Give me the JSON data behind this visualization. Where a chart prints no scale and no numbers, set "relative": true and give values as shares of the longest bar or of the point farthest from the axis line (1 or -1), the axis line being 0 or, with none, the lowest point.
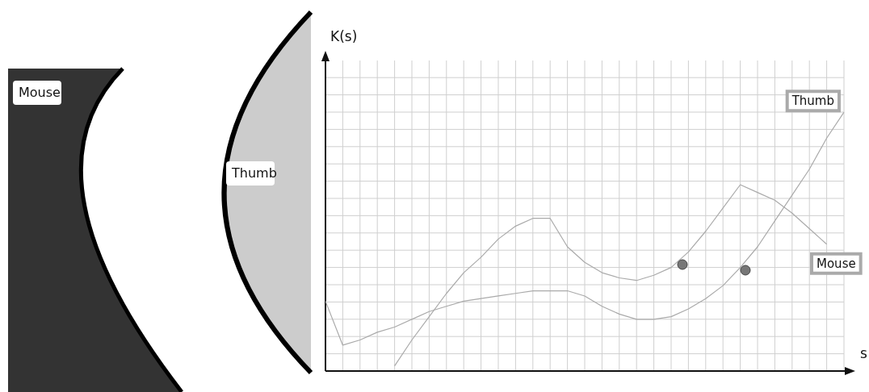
{
  "chart_data": {
    "type": "line",
    "relative": true,
    "xlabel": "s",
    "grid": true,
    "legend": false,
    "marker": "none",
    "line_style": "solid",
    "categories": [
      null,
      null,
      null,
      null,
      null,
      null,
      null,
      null,
      null,
      null,
      null,
      null,
      null,
      null,
      null,
      null,
      null,
      null,
      null,
      null,
      null,
      null,
      null,
      null,
      null,
      null,
      null,
      null,
      null,
      null,
      null
    ],
    "series": [
      {
        "name": "Thumb",
        "color": "#aaaaaa",
        "values": [
          0.27,
          0.1,
          0.12,
          0.15,
          0.17,
          0.2,
          0.23,
          0.25,
          0.27,
          0.28,
          0.29,
          0.3,
          0.31,
          0.31,
          0.31,
          0.29,
          0.25,
          0.22,
          0.2,
          0.2,
          0.21,
          0.24,
          0.28,
          0.33,
          0.4,
          0.48,
          0.58,
          0.68,
          0.78,
          0.9,
          1
        ]
      },
      {
        "name": "Mouse",
        "color": "#aaaaaa",
        "values": [
          null,
          null,
          null,
          null,
          0.02,
          0.12,
          0.21,
          0.3,
          0.38,
          0.44,
          0.51,
          0.56,
          0.59,
          0.59,
          0.48,
          0.42,
          0.38,
          0.36,
          0.35,
          0.37,
          0.4,
          0.46,
          0.54,
          0.63,
          0.72,
          0.69,
          0.66,
          0.61,
          0.55,
          0.49,
          null
        ]
      }
    ],
    "annotations": [
      "Mouse",
      "Thumb",
      "K(s)"
    ]
  }
}
